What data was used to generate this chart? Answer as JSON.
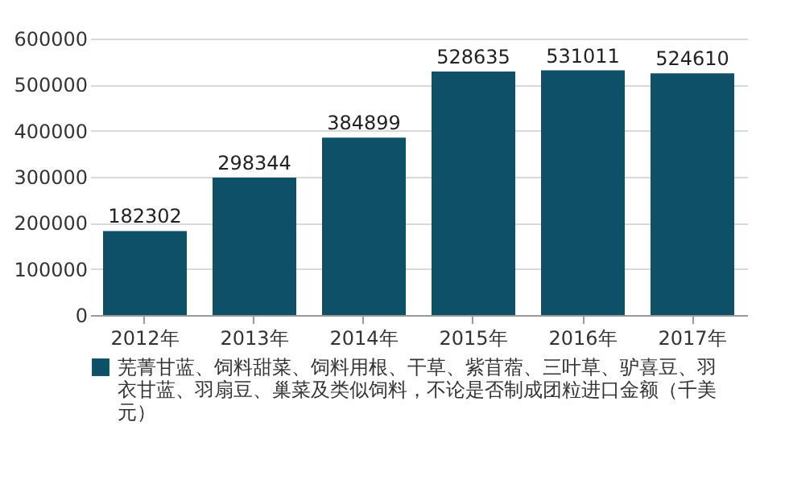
{
  "chart_data": {
    "type": "bar",
    "categories": [
      "2012年",
      "2013年",
      "2014年",
      "2015年",
      "2016年",
      "2017年"
    ],
    "series": [
      {
        "name": "芜菁甘蓝、饲料甜菜、饲料用根、干草、紫苜蓿、三叶草、驴喜豆、羽衣甘蓝、羽扇豆、巢菜及类似饲料，不论是否制成团粒进口金额（千美元）",
        "color": "#0e5068",
        "values": [
          182302,
          298344,
          384899,
          528635,
          531011,
          524610
        ]
      }
    ],
    "ylim": [
      0,
      600000
    ],
    "yticks": [
      0,
      100000,
      200000,
      300000,
      400000,
      500000,
      600000
    ],
    "grid": "y",
    "data_labels": true,
    "legend": "bottom"
  }
}
